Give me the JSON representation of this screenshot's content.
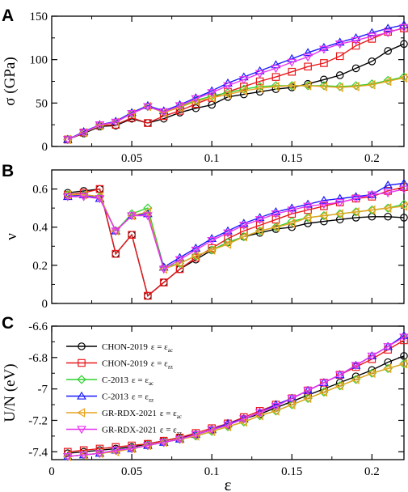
{
  "colors": {
    "CHON_ac": "#000000",
    "CHON_zz": "#e8191c",
    "C_ac": "#2fd12f",
    "C_zz": "#1a1aff",
    "GR_ac": "#e8a321",
    "GR_zz": "#e633f0"
  },
  "chart_data": [
    {
      "type": "line",
      "panel_label": "A",
      "ylabel": "σ (GPa)",
      "xlim": [
        0,
        0.22
      ],
      "ylim": [
        0,
        150
      ],
      "xticks": [
        0.05,
        0.1,
        0.15,
        0.2
      ],
      "xtick_labels": [
        "0.05",
        "0.1",
        "0.15",
        "0.2"
      ],
      "show_xtick_labels": true,
      "yticks": [
        0,
        50,
        100,
        150
      ],
      "ytick_labels": [
        "0",
        "50",
        "100",
        "150"
      ],
      "x": [
        0.01,
        0.02,
        0.03,
        0.04,
        0.05,
        0.06,
        0.07,
        0.08,
        0.09,
        0.1,
        0.11,
        0.12,
        0.13,
        0.14,
        0.15,
        0.16,
        0.17,
        0.18,
        0.19,
        0.2,
        0.21,
        0.22
      ],
      "series": [
        {
          "key": "CHON_ac",
          "marker": "circle",
          "values": [
            8,
            15,
            23,
            24,
            32,
            27,
            32,
            39,
            44,
            48,
            57,
            60,
            63,
            66,
            68,
            72,
            77,
            82,
            90,
            98,
            110,
            118
          ]
        },
        {
          "key": "CHON_zz",
          "marker": "square",
          "values": [
            8,
            16,
            24,
            25,
            33,
            27,
            35,
            41,
            49,
            56,
            63,
            69,
            75,
            80,
            86,
            92,
            96,
            104,
            116,
            124,
            132,
            136
          ]
        },
        {
          "key": "C_ac",
          "marker": "diamond",
          "values": [
            8,
            16,
            24,
            28,
            38,
            46,
            40,
            46,
            53,
            58,
            62,
            66,
            69,
            70,
            70,
            70,
            70,
            69,
            70,
            72,
            76,
            80
          ]
        },
        {
          "key": "C_zz",
          "marker": "triangle-up",
          "values": [
            8,
            17,
            25,
            29,
            39,
            47,
            41,
            48,
            56,
            64,
            73,
            80,
            87,
            94,
            101,
            108,
            114,
            120,
            125,
            131,
            136,
            140
          ]
        },
        {
          "key": "GR_ac",
          "marker": "triangle-left",
          "values": [
            8,
            16,
            24,
            28,
            38,
            46,
            39,
            45,
            52,
            56,
            60,
            64,
            67,
            69,
            70,
            70,
            69,
            68,
            69,
            71,
            75,
            79
          ]
        },
        {
          "key": "GR_zz",
          "marker": "triangle-down",
          "values": [
            8,
            16,
            25,
            28,
            38,
            46,
            40,
            47,
            55,
            62,
            70,
            77,
            84,
            90,
            97,
            103,
            112,
            118,
            122,
            127,
            131,
            137
          ]
        }
      ]
    },
    {
      "type": "line",
      "panel_label": "B",
      "ylabel": "ν",
      "xlim": [
        0,
        0.22
      ],
      "ylim": [
        0,
        0.7
      ],
      "xticks": [
        0.05,
        0.1,
        0.15,
        0.2
      ],
      "xtick_labels": [
        "0.05",
        "0.1",
        "0.15",
        "0.2"
      ],
      "show_xtick_labels": false,
      "yticks": [
        0,
        0.2,
        0.4,
        0.6
      ],
      "ytick_labels": [
        "0",
        "0.2",
        "0.4",
        "0.6"
      ],
      "x": [
        0.01,
        0.02,
        0.03,
        0.04,
        0.05,
        0.06,
        0.07,
        0.08,
        0.09,
        0.1,
        0.11,
        0.12,
        0.13,
        0.14,
        0.15,
        0.16,
        0.17,
        0.18,
        0.19,
        0.2,
        0.21,
        0.22
      ],
      "series": [
        {
          "key": "CHON_ac",
          "marker": "circle",
          "values": [
            0.58,
            0.59,
            0.6,
            0.26,
            0.36,
            0.04,
            0.11,
            0.18,
            0.23,
            0.28,
            0.32,
            0.35,
            0.37,
            0.39,
            0.4,
            0.42,
            0.43,
            0.44,
            0.45,
            0.455,
            0.455,
            0.45
          ]
        },
        {
          "key": "CHON_zz",
          "marker": "square",
          "values": [
            0.57,
            0.58,
            0.6,
            0.26,
            0.36,
            0.04,
            0.11,
            0.18,
            0.24,
            0.29,
            0.34,
            0.38,
            0.41,
            0.44,
            0.47,
            0.49,
            0.51,
            0.53,
            0.55,
            0.56,
            0.59,
            0.61
          ]
        },
        {
          "key": "C_ac",
          "marker": "diamond",
          "values": [
            0.57,
            0.57,
            0.56,
            0.38,
            0.47,
            0.5,
            0.19,
            0.21,
            0.25,
            0.28,
            0.32,
            0.35,
            0.38,
            0.4,
            0.43,
            0.45,
            0.46,
            0.47,
            0.48,
            0.49,
            0.5,
            0.52
          ]
        },
        {
          "key": "C_zz",
          "marker": "triangle-up",
          "values": [
            0.56,
            0.57,
            0.55,
            0.38,
            0.46,
            0.47,
            0.19,
            0.24,
            0.29,
            0.34,
            0.38,
            0.42,
            0.45,
            0.48,
            0.5,
            0.52,
            0.54,
            0.55,
            0.56,
            0.57,
            0.62,
            0.63
          ]
        },
        {
          "key": "GR_ac",
          "marker": "triangle-left",
          "values": [
            0.57,
            0.57,
            0.56,
            0.38,
            0.46,
            0.48,
            0.18,
            0.21,
            0.25,
            0.28,
            0.31,
            0.35,
            0.38,
            0.4,
            0.42,
            0.45,
            0.46,
            0.47,
            0.48,
            0.49,
            0.5,
            0.51
          ]
        },
        {
          "key": "GR_zz",
          "marker": "triangle-down",
          "values": [
            0.56,
            0.56,
            0.55,
            0.38,
            0.46,
            0.46,
            0.18,
            0.23,
            0.28,
            0.33,
            0.37,
            0.41,
            0.44,
            0.47,
            0.49,
            0.51,
            0.52,
            0.53,
            0.55,
            0.57,
            0.58,
            0.6
          ]
        }
      ]
    },
    {
      "type": "line",
      "panel_label": "C",
      "ylabel": "U/N (eV)",
      "xlabel": "ε",
      "xlim": [
        0,
        0.22
      ],
      "ylim": [
        -7.45,
        -6.6
      ],
      "xticks": [
        0,
        0.05,
        0.1,
        0.15,
        0.2
      ],
      "xtick_labels": [
        "0",
        "0.05",
        "0.1",
        "0.15",
        "0.2"
      ],
      "show_xtick_labels": true,
      "yticks": [
        -7.4,
        -7.2,
        -7,
        -6.8,
        -6.6
      ],
      "ytick_labels": [
        "-7.4",
        "-7.2",
        "-7",
        "-6.8",
        "-6.6"
      ],
      "x": [
        0.01,
        0.02,
        0.03,
        0.04,
        0.05,
        0.06,
        0.07,
        0.08,
        0.09,
        0.1,
        0.11,
        0.12,
        0.13,
        0.14,
        0.15,
        0.16,
        0.17,
        0.18,
        0.19,
        0.2,
        0.21,
        0.22
      ],
      "series": [
        {
          "key": "CHON_ac",
          "marker": "circle",
          "values": [
            -7.41,
            -7.4,
            -7.39,
            -7.38,
            -7.37,
            -7.35,
            -7.33,
            -7.31,
            -7.29,
            -7.26,
            -7.23,
            -7.19,
            -7.16,
            -7.12,
            -7.08,
            -7.04,
            -7.0,
            -6.96,
            -6.92,
            -6.88,
            -6.83,
            -6.79
          ]
        },
        {
          "key": "CHON_zz",
          "marker": "square",
          "values": [
            -7.4,
            -7.39,
            -7.38,
            -7.37,
            -7.36,
            -7.35,
            -7.33,
            -7.31,
            -7.28,
            -7.25,
            -7.22,
            -7.18,
            -7.14,
            -7.1,
            -7.06,
            -7.01,
            -6.96,
            -6.91,
            -6.86,
            -6.81,
            -6.75,
            -6.69
          ]
        },
        {
          "key": "C_ac",
          "marker": "diamond",
          "values": [
            -7.43,
            -7.42,
            -7.41,
            -7.39,
            -7.38,
            -7.36,
            -7.34,
            -7.32,
            -7.3,
            -7.27,
            -7.24,
            -7.21,
            -7.17,
            -7.14,
            -7.1,
            -7.06,
            -7.02,
            -6.98,
            -6.94,
            -6.9,
            -6.87,
            -6.84
          ]
        },
        {
          "key": "C_zz",
          "marker": "triangle-up",
          "values": [
            -7.43,
            -7.42,
            -7.41,
            -7.39,
            -7.38,
            -7.36,
            -7.34,
            -7.32,
            -7.29,
            -7.26,
            -7.22,
            -7.19,
            -7.15,
            -7.1,
            -7.06,
            -7.01,
            -6.96,
            -6.91,
            -6.85,
            -6.79,
            -6.73,
            -6.66
          ]
        },
        {
          "key": "GR_ac",
          "marker": "triangle-left",
          "values": [
            -7.43,
            -7.42,
            -7.41,
            -7.4,
            -7.38,
            -7.36,
            -7.34,
            -7.32,
            -7.3,
            -7.27,
            -7.24,
            -7.21,
            -7.17,
            -7.14,
            -7.1,
            -7.06,
            -7.02,
            -6.98,
            -6.94,
            -6.9,
            -6.87,
            -6.84
          ]
        },
        {
          "key": "GR_zz",
          "marker": "triangle-down",
          "values": [
            -7.43,
            -7.42,
            -7.41,
            -7.39,
            -7.38,
            -7.36,
            -7.34,
            -7.32,
            -7.29,
            -7.26,
            -7.23,
            -7.19,
            -7.15,
            -7.11,
            -7.06,
            -7.01,
            -6.96,
            -6.91,
            -6.85,
            -6.79,
            -6.73,
            -6.67
          ]
        }
      ],
      "legend": {
        "placement": "upper-left",
        "entries": [
          {
            "key": "CHON_ac",
            "marker": "circle",
            "name": "CHON-2019",
            "eq": "ε = ε",
            "sub": "ac"
          },
          {
            "key": "CHON_zz",
            "marker": "square",
            "name": "CHON-2019",
            "eq": "ε = ε",
            "sub": "zz"
          },
          {
            "key": "C_ac",
            "marker": "diamond",
            "name": "C-2013",
            "eq": "ε = ε",
            "sub": "ac"
          },
          {
            "key": "C_zz",
            "marker": "triangle-up",
            "name": "C-2013",
            "eq": "ε = ε",
            "sub": "zz"
          },
          {
            "key": "GR_ac",
            "marker": "triangle-left",
            "name": "GR-RDX-2021",
            "eq": "ε = ε",
            "sub": "ac"
          },
          {
            "key": "GR_zz",
            "marker": "triangle-down",
            "name": "GR-RDX-2021",
            "eq": "ε = ε",
            "sub": "zz"
          }
        ]
      }
    }
  ]
}
